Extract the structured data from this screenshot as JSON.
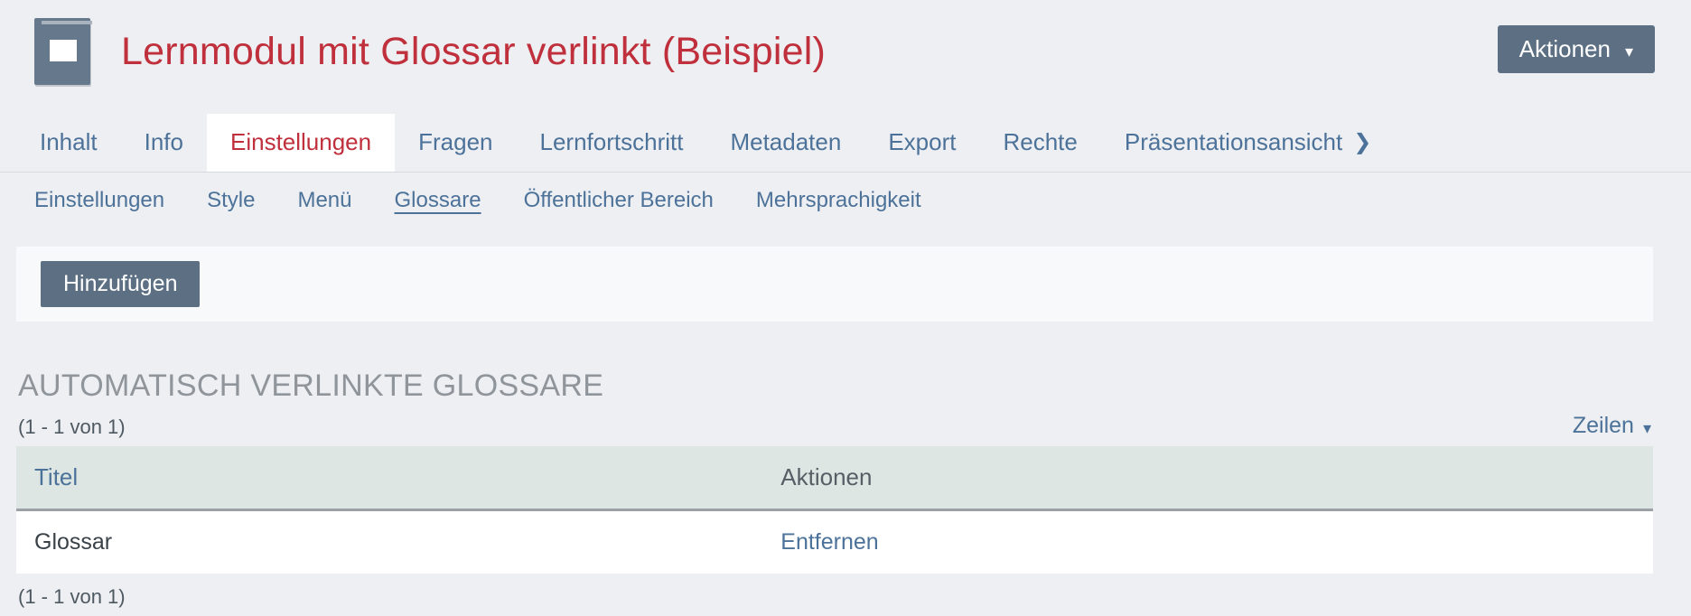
{
  "page": {
    "title": "Lernmodul mit Glossar verlinkt (Beispiel)",
    "object_icon": "learning-module-book-icon"
  },
  "header": {
    "actions_button_label": "Aktionen"
  },
  "icons": {
    "actions_caret": "▾",
    "rows_caret": "▾",
    "presentation_chevron": "❯"
  },
  "tabs": {
    "active": "Einstellungen",
    "items": [
      {
        "label": "Inhalt"
      },
      {
        "label": "Info"
      },
      {
        "label": "Einstellungen"
      },
      {
        "label": "Fragen"
      },
      {
        "label": "Lernfortschritt"
      },
      {
        "label": "Metadaten"
      },
      {
        "label": "Export"
      },
      {
        "label": "Rechte"
      },
      {
        "label": "Präsentationsansicht"
      }
    ]
  },
  "subtabs": {
    "active": "Glossare",
    "items": [
      {
        "label": "Einstellungen"
      },
      {
        "label": "Style"
      },
      {
        "label": "Menü"
      },
      {
        "label": "Glossare"
      },
      {
        "label": "Öffentlicher Bereich"
      },
      {
        "label": "Mehrsprachigkeit"
      }
    ]
  },
  "toolbar": {
    "add_button_label": "Hinzufügen"
  },
  "glossary_section": {
    "title": "AUTOMATISCH VERLINKTE GLOSSARE",
    "range_top": "(1 - 1 von 1)",
    "rows_dropdown_label": "Zeilen",
    "columns": {
      "title": "Titel",
      "actions": "Aktionen"
    },
    "rows": [
      {
        "title": "Glossar",
        "action_label": "Entfernen"
      }
    ],
    "range_bottom": "(1 - 1 von 1)"
  },
  "colors": {
    "page_background": "#edeff2",
    "title_red": "#c0303c",
    "link_blue": "#4d7299",
    "button_slate": "#5d7083",
    "table_header_bg": "#dde6e2",
    "section_title_gray": "#8f959b"
  }
}
